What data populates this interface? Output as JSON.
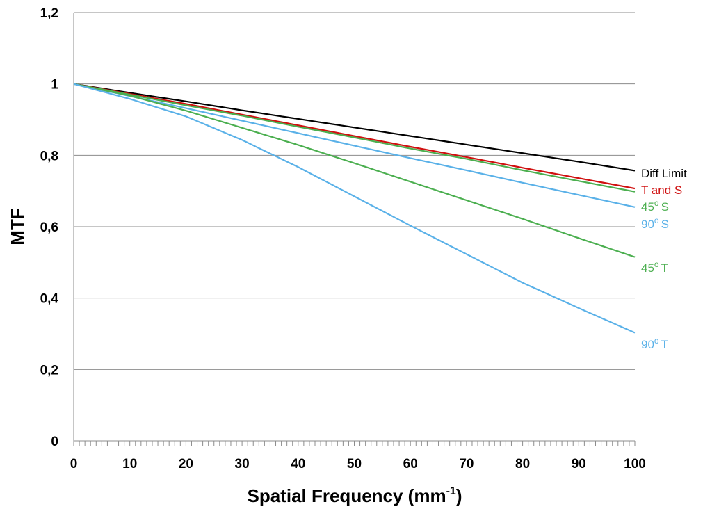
{
  "chart_data": {
    "type": "line",
    "xlabel": "Spatial Frequency (mm",
    "xlabel_sup": "-1",
    "xlabel_end": ")",
    "ylabel": "MTF",
    "xlim": [
      0,
      100
    ],
    "ylim": [
      0,
      1.2
    ],
    "grid": "horizontal",
    "x_ticks": [
      {
        "value": 0,
        "label": "0"
      },
      {
        "value": 10,
        "label": "10"
      },
      {
        "value": 20,
        "label": "20"
      },
      {
        "value": 30,
        "label": "30"
      },
      {
        "value": 40,
        "label": "40"
      },
      {
        "value": 50,
        "label": "50"
      },
      {
        "value": 60,
        "label": "60"
      },
      {
        "value": 70,
        "label": "70"
      },
      {
        "value": 80,
        "label": "80"
      },
      {
        "value": 90,
        "label": "90"
      },
      {
        "value": 100,
        "label": "100"
      }
    ],
    "y_ticks": [
      {
        "value": 0,
        "label": "0"
      },
      {
        "value": 0.2,
        "label": "0,2"
      },
      {
        "value": 0.4,
        "label": "0,4"
      },
      {
        "value": 0.6,
        "label": "0,6"
      },
      {
        "value": 0.8,
        "label": "0,8"
      },
      {
        "value": 1.0,
        "label": "1"
      },
      {
        "value": 1.2,
        "label": "1,2"
      }
    ],
    "x": [
      0,
      10,
      20,
      30,
      40,
      50,
      60,
      70,
      80,
      90,
      100
    ],
    "series": [
      {
        "id": "diff-limit",
        "name": "Diff Limit",
        "sup": "",
        "name_end": "",
        "color": "#000000",
        "values": [
          1.0,
          0.975,
          0.951,
          0.926,
          0.902,
          0.878,
          0.854,
          0.83,
          0.806,
          0.782,
          0.757
        ]
      },
      {
        "id": "t-and-s",
        "name": "T and S",
        "sup": "",
        "name_end": "",
        "color": "#d01010",
        "values": [
          1.0,
          0.972,
          0.944,
          0.914,
          0.884,
          0.854,
          0.824,
          0.795,
          0.765,
          0.736,
          0.707
        ]
      },
      {
        "id": "45-s",
        "name": "45",
        "sup": "o",
        "name_end": "S",
        "color": "#4caf50",
        "values": [
          1.0,
          0.97,
          0.94,
          0.911,
          0.88,
          0.85,
          0.819,
          0.79,
          0.758,
          0.728,
          0.698
        ]
      },
      {
        "id": "90-s",
        "name": "90",
        "sup": "o",
        "name_end": "S",
        "color": "#5ab1e8",
        "values": [
          1.0,
          0.966,
          0.932,
          0.897,
          0.862,
          0.827,
          0.792,
          0.758,
          0.723,
          0.689,
          0.655
        ]
      },
      {
        "id": "45-t",
        "name": "45",
        "sup": "o",
        "name_end": "T",
        "color": "#4caf50",
        "values": [
          1.0,
          0.967,
          0.925,
          0.877,
          0.829,
          0.778,
          0.726,
          0.674,
          0.622,
          0.568,
          0.515
        ]
      },
      {
        "id": "90-t",
        "name": "90",
        "sup": "o",
        "name_end": "T",
        "color": "#5ab1e8",
        "values": [
          1.0,
          0.958,
          0.909,
          0.843,
          0.767,
          0.685,
          0.603,
          0.523,
          0.443,
          0.372,
          0.303
        ]
      }
    ]
  }
}
